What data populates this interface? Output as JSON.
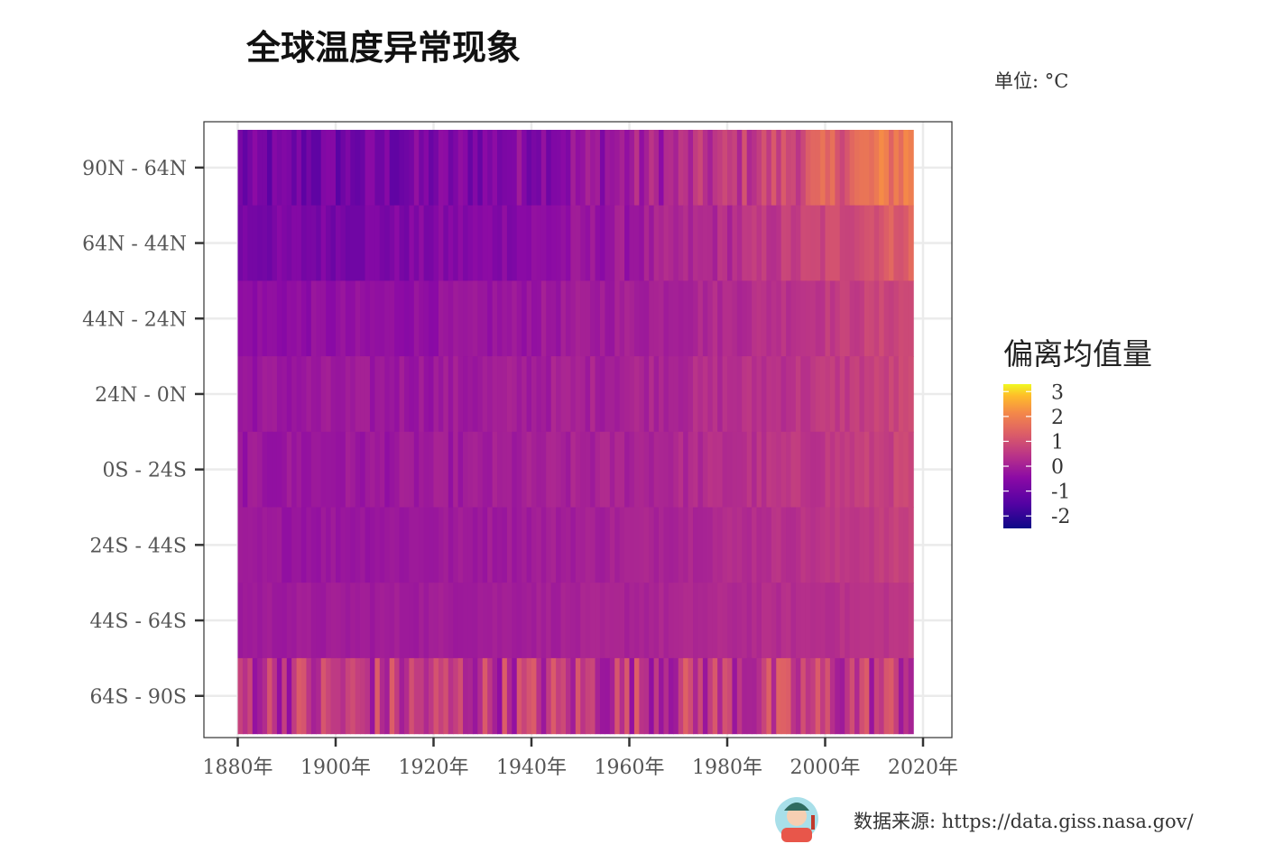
{
  "chart_data": {
    "type": "heatmap",
    "title": "全球温度异常现象",
    "unit_note": "单位: °C",
    "legend_title": "偏离均值量",
    "legend_ticks": [
      3,
      2,
      1,
      0,
      -1,
      -2
    ],
    "legend_range": [
      -2.5,
      3.3
    ],
    "x_ticks": [
      1880,
      1900,
      1920,
      1940,
      1960,
      1980,
      2000,
      2020
    ],
    "x_tick_suffix": "年",
    "xlim": [
      1880,
      2017
    ],
    "bands": [
      "90N - 64N",
      "64N - 44N",
      "44N - 24N",
      "24N - 0N",
      "0S - 24S",
      "24S - 44S",
      "44S - 64S",
      "64S - 90S"
    ],
    "band_mean_early": [
      -1.0,
      -0.8,
      -0.4,
      -0.2,
      -0.2,
      -0.2,
      -0.1,
      0.5
    ],
    "band_mean_late": [
      2.0,
      1.4,
      0.9,
      0.8,
      0.8,
      0.7,
      0.5,
      0.6
    ],
    "band_variability": [
      0.55,
      0.3,
      0.2,
      0.22,
      0.22,
      0.15,
      0.12,
      0.9
    ],
    "source_text": "数据来源: https://data.giss.nasa.gov/",
    "grid": true,
    "legend_position": "right"
  }
}
